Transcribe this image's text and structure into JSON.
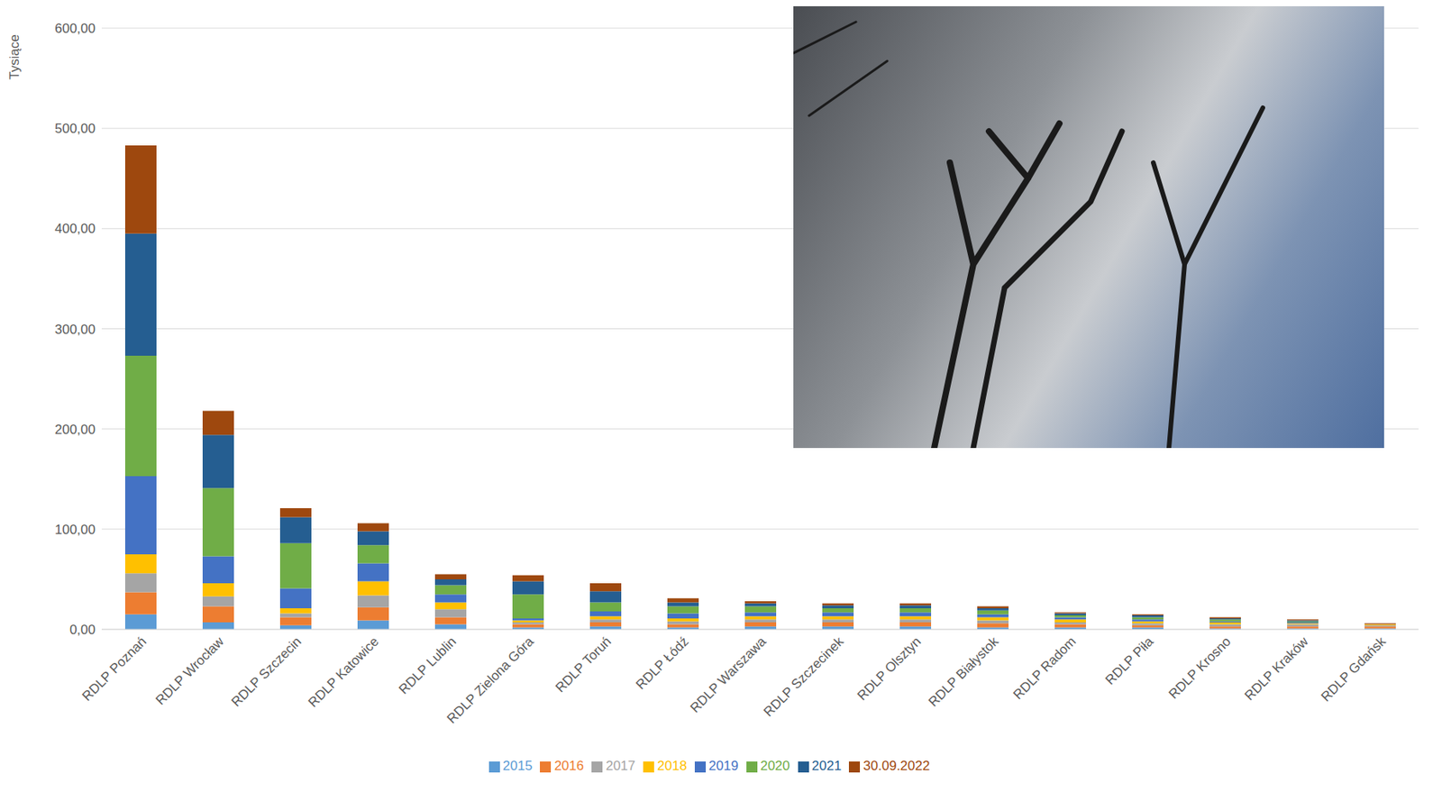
{
  "chart_data": {
    "type": "bar",
    "stacked": true,
    "grid": true,
    "legend": "bottom",
    "y_label": "Tysiące",
    "categories": [
      "RDLP Poznań",
      "RDLP Wrocław",
      "RDLP Szczecin",
      "RDLP Katowice",
      "RDLP Lublin",
      "RDLP Zielona Góra",
      "RDLP Toruń",
      "RDLP Łódź",
      "RDLP Warszawa",
      "RDLP Szczecinek",
      "RDLP Olsztyn",
      "RDLP Białystok",
      "RDLP Radom",
      "RDLP Piła",
      "RDLP Krosno",
      "RDLP Kraków",
      "RDLP Gdańsk"
    ],
    "ylim": [
      0,
      600
    ],
    "yticks": [
      {
        "value": 0,
        "label": "0,00"
      },
      {
        "value": 100,
        "label": "100,00"
      },
      {
        "value": 200,
        "label": "200,00"
      },
      {
        "value": 300,
        "label": "300,00"
      },
      {
        "value": 400,
        "label": "400,00"
      },
      {
        "value": 500,
        "label": "500,00"
      },
      {
        "value": 600,
        "label": "600,00"
      }
    ],
    "series": [
      {
        "name": "2015",
        "color": "#5b9bd5",
        "values": [
          15,
          7,
          4,
          9,
          5,
          2,
          3,
          2,
          3,
          3,
          3,
          2,
          2,
          2,
          1,
          1,
          1
        ]
      },
      {
        "name": "2016",
        "color": "#ed7d31",
        "values": [
          22,
          16,
          8,
          13,
          7,
          3,
          4,
          3,
          4,
          4,
          4,
          4,
          3,
          2,
          2,
          2,
          2
        ]
      },
      {
        "name": "2017",
        "color": "#a5a5a5",
        "values": [
          19,
          10,
          4,
          12,
          8,
          2,
          3,
          3,
          3,
          3,
          3,
          3,
          2,
          2,
          2,
          2,
          1
        ]
      },
      {
        "name": "2018",
        "color": "#ffc000",
        "values": [
          19,
          13,
          5,
          14,
          7,
          2,
          3,
          3,
          3,
          3,
          3,
          3,
          3,
          2,
          2,
          1,
          1
        ]
      },
      {
        "name": "2019",
        "color": "#4472c4",
        "values": [
          78,
          27,
          20,
          18,
          8,
          2,
          5,
          5,
          4,
          4,
          4,
          3,
          2,
          2,
          1,
          1,
          0
        ]
      },
      {
        "name": "2020",
        "color": "#70ad47",
        "values": [
          120,
          68,
          45,
          18,
          9,
          24,
          9,
          7,
          6,
          4,
          4,
          4,
          2,
          2,
          2,
          1,
          0
        ]
      },
      {
        "name": "2021",
        "color": "#255e91",
        "values": [
          122,
          53,
          26,
          14,
          6,
          13,
          11,
          4,
          3,
          3,
          3,
          2,
          2,
          2,
          1,
          1,
          0
        ]
      },
      {
        "name": "30.09.2022",
        "color": "#9e480e",
        "values": [
          88,
          24,
          9,
          8,
          5,
          6,
          8,
          4,
          2,
          2,
          2,
          2,
          1,
          1,
          1,
          1,
          1
        ]
      }
    ]
  }
}
